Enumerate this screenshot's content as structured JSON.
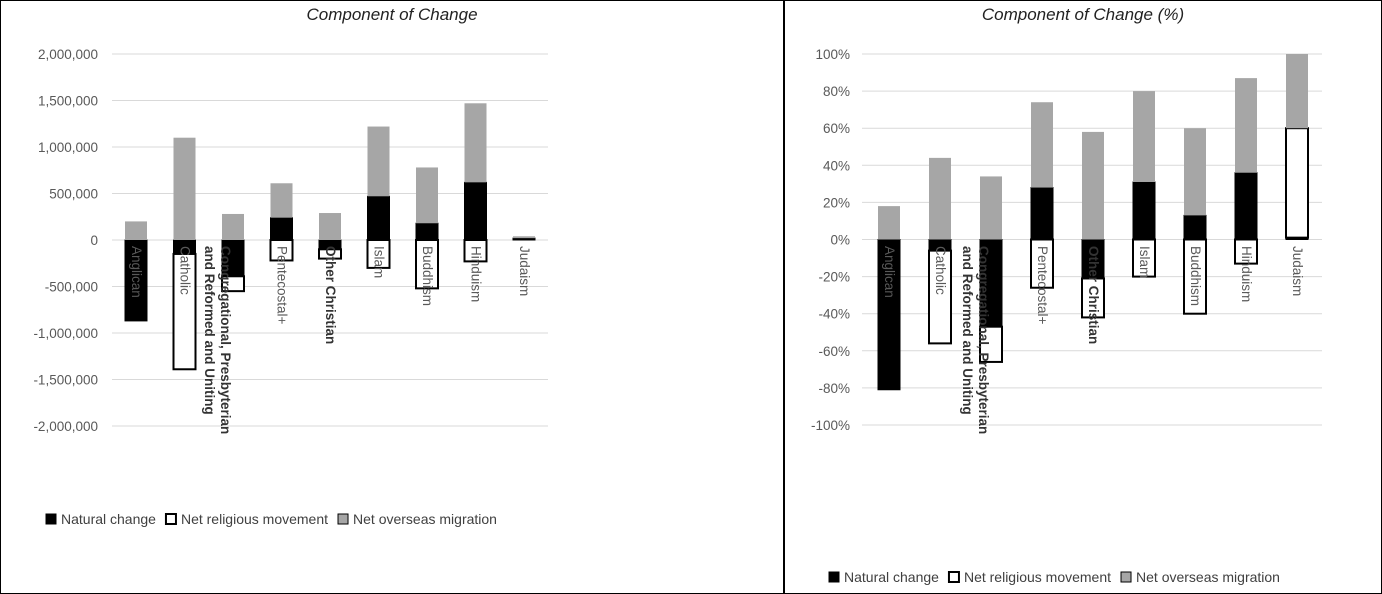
{
  "chart_data": [
    {
      "type": "bar",
      "stacked": true,
      "title": "Component of Change",
      "categories": [
        "Anglican",
        "Catholic",
        "Congregational, Presbyterian and Reformed and Uniting",
        "Pentecostal+",
        "Other Christian",
        "Islam",
        "Buddhism",
        "Hinduism",
        "Judaism"
      ],
      "bold_categories": [
        2,
        4
      ],
      "series": [
        {
          "name": "Natural change",
          "values": [
            -870000,
            -150000,
            -390000,
            240000,
            -100000,
            470000,
            180000,
            620000,
            20000
          ]
        },
        {
          "name": "Net religious movement",
          "values": [
            0,
            -1240000,
            -160000,
            -220000,
            -100000,
            -300000,
            -520000,
            -230000,
            0
          ]
        },
        {
          "name": "Net overseas migration",
          "values": [
            200000,
            1100000,
            280000,
            370000,
            290000,
            750000,
            600000,
            850000,
            20000
          ]
        }
      ],
      "ylim": [
        -2000000,
        2000000
      ],
      "yticks": [
        "2,000,000",
        "1,500,000",
        "1,000,000",
        "500,000",
        "0",
        "-500,000",
        "-1,000,000",
        "-1,500,000",
        "-2,000,000"
      ],
      "ytick_values": [
        2000000,
        1500000,
        1000000,
        500000,
        0,
        -500000,
        -1000000,
        -1500000,
        -2000000
      ],
      "grid": true,
      "legend": "bottom",
      "colors": [
        "#000000",
        "#ffffff",
        "#a6a6a6"
      ]
    },
    {
      "type": "bar",
      "stacked": true,
      "title": "Component of Change (%)",
      "categories": [
        "Anglican",
        "Catholic",
        "Congregational, Presbyterian and Reformed and Uniting",
        "Pentecostal+",
        "Other Christian",
        "Islam",
        "Buddhism",
        "Hinduism",
        "Judaism"
      ],
      "bold_categories": [
        2,
        4
      ],
      "series": [
        {
          "name": "Natural change",
          "values": [
            -81,
            -6,
            -47,
            28,
            -21,
            31,
            13,
            36,
            1
          ]
        },
        {
          "name": "Net religious movement",
          "values": [
            0,
            -50,
            -19,
            -26,
            -21,
            -20,
            -40,
            -13,
            59
          ]
        },
        {
          "name": "Net overseas migration",
          "values": [
            18,
            44,
            34,
            46,
            58,
            49,
            47,
            51,
            40
          ]
        }
      ],
      "ylim": [
        -100,
        100
      ],
      "yticks": [
        "100%",
        "80%",
        "60%",
        "40%",
        "20%",
        "0%",
        "-20%",
        "-40%",
        "-60%",
        "-80%",
        "-100%"
      ],
      "ytick_values": [
        100,
        80,
        60,
        40,
        20,
        0,
        -20,
        -40,
        -60,
        -80,
        -100
      ],
      "grid": true,
      "legend": "bottom",
      "colors": [
        "#000000",
        "#ffffff",
        "#a6a6a6"
      ]
    }
  ]
}
